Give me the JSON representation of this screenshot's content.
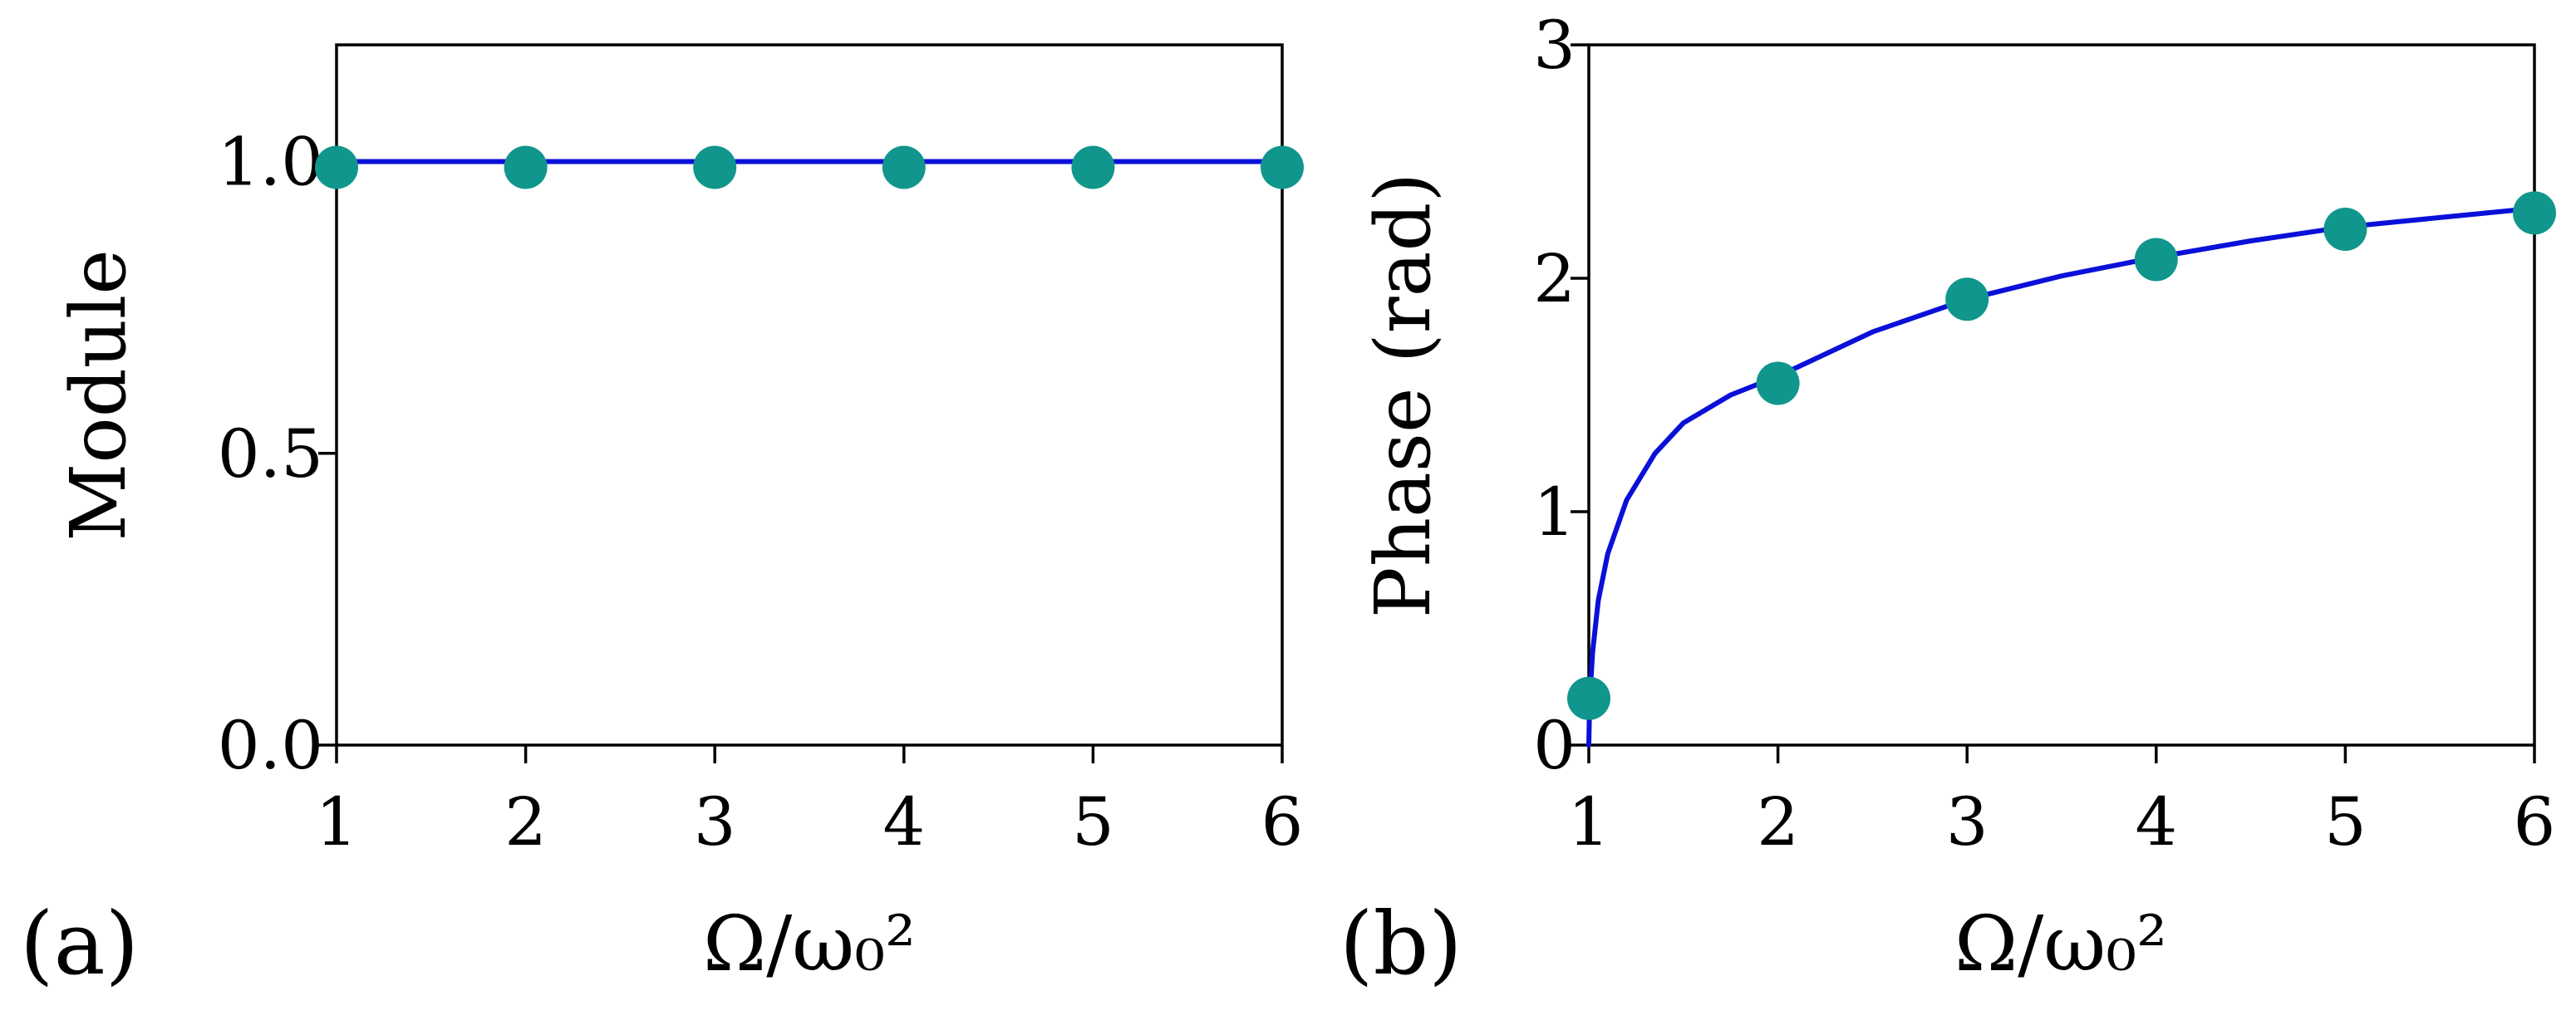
{
  "figure": {
    "panel_a_label": "(a)",
    "panel_b_label": "(b)"
  },
  "colors": {
    "curve": "#0a10d8",
    "markers": "#10968c",
    "axes": "#000000"
  },
  "chart_data": [
    {
      "panel": "(a)",
      "type": "line",
      "xlabel": "Ω/ω₀²",
      "ylabel": "Module",
      "xlim": [
        1,
        6
      ],
      "ylim": [
        0,
        1.2
      ],
      "xticks": [
        1,
        2,
        3,
        4,
        5,
        6
      ],
      "xtick_labels": [
        "1",
        "2",
        "3",
        "4",
        "5",
        "6"
      ],
      "yticks": [
        0,
        0.5,
        1.0
      ],
      "ytick_labels": [
        "0.0",
        "0.5",
        "1.0"
      ],
      "grid": false,
      "series": [
        {
          "kind": "line",
          "x": [
            1,
            6
          ],
          "y": [
            1.0,
            1.0
          ]
        },
        {
          "kind": "scatter",
          "x": [
            1,
            2,
            3,
            4,
            5,
            6
          ],
          "y": [
            0.99,
            0.99,
            0.99,
            0.99,
            0.99,
            0.99
          ]
        }
      ]
    },
    {
      "panel": "(b)",
      "type": "line",
      "xlabel": "Ω/ω₀²",
      "ylabel": "Phase (rad)",
      "xlim": [
        1,
        6
      ],
      "ylim": [
        0,
        3
      ],
      "xticks": [
        1,
        2,
        3,
        4,
        5,
        6
      ],
      "xtick_labels": [
        "1",
        "2",
        "3",
        "4",
        "5",
        "6"
      ],
      "yticks": [
        0,
        1,
        2,
        3
      ],
      "ytick_labels": [
        "0",
        "1",
        "2",
        "3"
      ],
      "grid": false,
      "series": [
        {
          "kind": "line",
          "x": [
            1.0,
            1.005,
            1.02,
            1.05,
            1.1,
            1.2,
            1.35,
            1.5,
            1.75,
            2.0,
            2.5,
            3.0,
            3.5,
            4.0,
            4.5,
            5.0,
            5.5,
            6.0
          ],
          "y": [
            0.0,
            0.2,
            0.4,
            0.62,
            0.82,
            1.05,
            1.25,
            1.38,
            1.5,
            1.58,
            1.77,
            1.91,
            2.01,
            2.09,
            2.16,
            2.22,
            2.26,
            2.3
          ]
        },
        {
          "kind": "scatter",
          "x": [
            1,
            2,
            3,
            4,
            5,
            6
          ],
          "y": [
            0.2,
            1.55,
            1.91,
            2.08,
            2.21,
            2.28
          ]
        }
      ]
    }
  ]
}
